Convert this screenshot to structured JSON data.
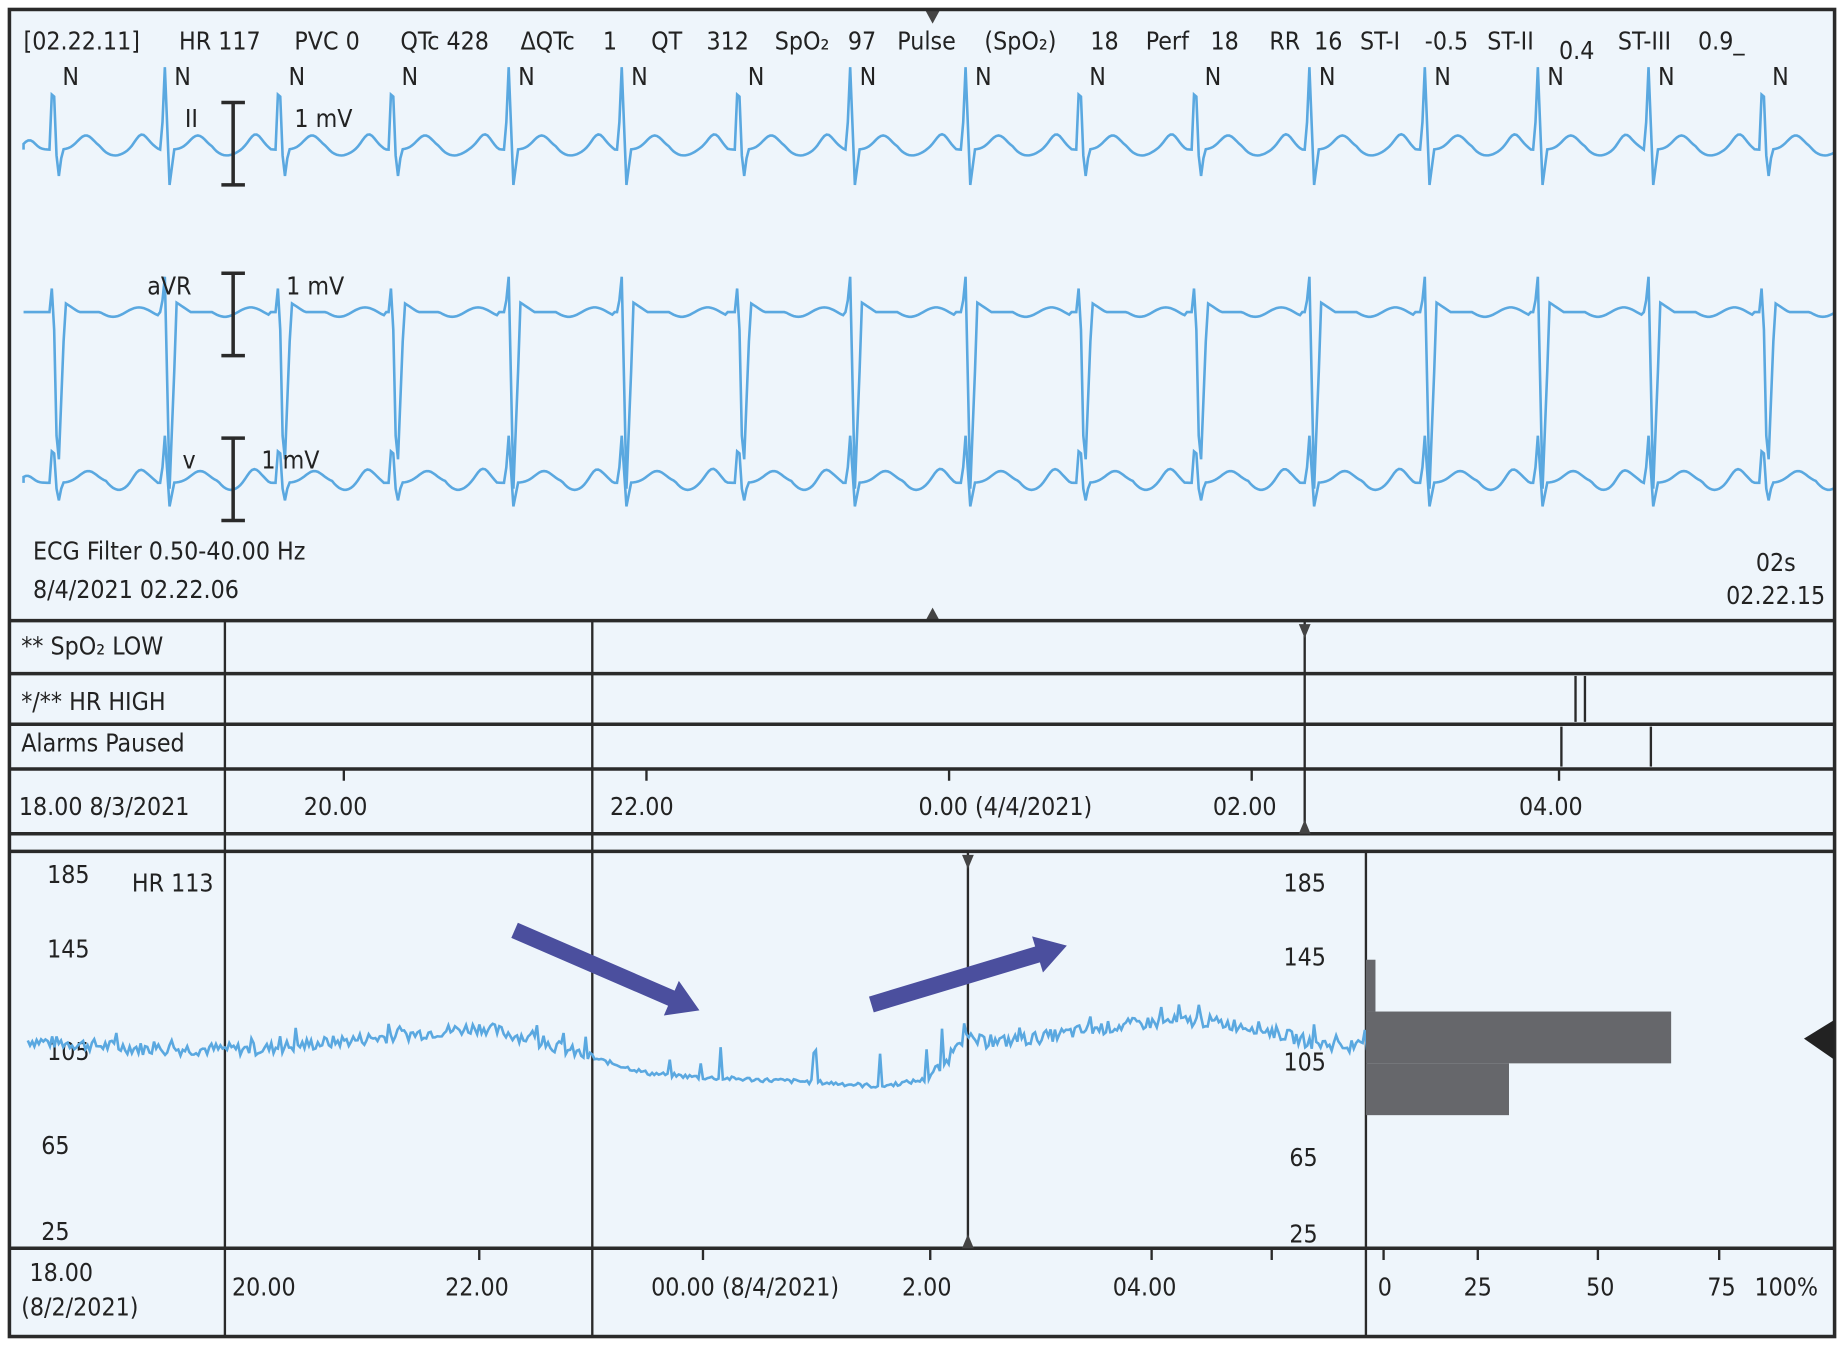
{
  "colors": {
    "background": "#eef5fb",
    "waveform": "#5aa8e0",
    "arrow": "#4b4f9e",
    "histogram": "#66676b"
  },
  "header": {
    "items": [
      "[02.22.11]",
      "HR 117",
      "PVC 0",
      "QTc 428",
      "ΔQTc",
      "1",
      "QT",
      "312",
      "SpO₂",
      "97",
      "Pulse",
      "(SpO₂)",
      "18",
      "Perf",
      "18",
      "RR",
      "16",
      "ST-I",
      "-0.5",
      "ST-II",
      "0.4",
      "ST-III",
      "0.9_"
    ],
    "beat_label": "N"
  },
  "leads": [
    {
      "name": "II",
      "scale": "1 mV"
    },
    {
      "name": "aVR",
      "scale": "1 mV"
    },
    {
      "name": "v",
      "scale": "1 mV"
    }
  ],
  "ecg_footer": {
    "filter": "ECG Filter 0.50-40.00 Hz",
    "start": "8/4/2021 02.22.06",
    "duration": "02s",
    "end": "02.22.15"
  },
  "alarms": {
    "rows": [
      "** SpO₂ LOW",
      "*/** HR HIGH",
      "Alarms Paused"
    ]
  },
  "alarm_axis": {
    "start": "18.00 8/3/2021",
    "ticks": [
      "20.00",
      "22.00",
      "0.00  (4/4/2021)",
      "02.00",
      "04.00"
    ]
  },
  "trend": {
    "label": "HR 113",
    "y_ticks": [
      "185",
      "145",
      "105",
      "65",
      "25"
    ],
    "x_start": "18.00",
    "x_start_date": "(8/2/2021)",
    "x_ticks": [
      "20.00",
      "22.00",
      "00.00  (8/4/2021)",
      "2.00",
      "04.00"
    ]
  },
  "chart_data": {
    "type": "line",
    "series": [
      {
        "name": "HR",
        "points": [
          [
            -0.1,
            112
          ],
          [
            1,
            108
          ],
          [
            2,
            108
          ],
          [
            3,
            113
          ],
          [
            4,
            118
          ],
          [
            4.5,
            112
          ],
          [
            5,
            104
          ],
          [
            5.5,
            97
          ],
          [
            6,
            95
          ],
          [
            7,
            93
          ],
          [
            7.6,
            91
          ],
          [
            8,
            94
          ],
          [
            8.2,
            102
          ],
          [
            8.3,
            113
          ],
          [
            8.6,
            111
          ],
          [
            9,
            113
          ],
          [
            9.5,
            117
          ],
          [
            10,
            120
          ],
          [
            10.5,
            121
          ],
          [
            11,
            118
          ],
          [
            11.5,
            111
          ],
          [
            12,
            108
          ]
        ]
      }
    ],
    "ylim": [
      25,
      185
    ],
    "histogram": {
      "bins": [
        "125-145",
        "105-125",
        "85-105"
      ],
      "percent": [
        2,
        64,
        30
      ],
      "x_ticks": [
        "0",
        "25",
        "50",
        "75",
        "100%"
      ]
    }
  }
}
